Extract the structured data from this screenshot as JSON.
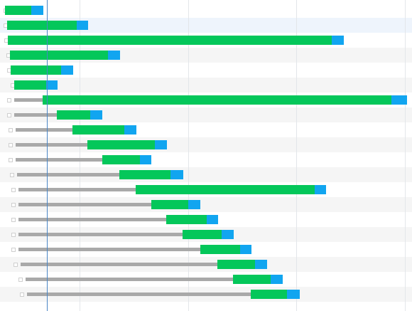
{
  "colors": {
    "row_odd": "#ffffff",
    "row_even": "#f5f5f5",
    "row_highlight": "#eef4fc",
    "queue": "#a9a9a9",
    "download": "#04c75a",
    "wait": "#11a5f0",
    "gridline": "#e3e6ea",
    "marker": "#4a86c5"
  },
  "icons": {
    "row_stub": "request-stub-icon"
  },
  "timeline": {
    "gridlines_ms": [
      112,
      265,
      417,
      570
    ],
    "marker_ms": 66
  },
  "requests": [
    {
      "queued": 0,
      "start": 7,
      "download_end": 44,
      "end": 61,
      "highlight": false
    },
    {
      "queued": 0,
      "start": 10,
      "download_end": 108,
      "end": 124,
      "highlight": true
    },
    {
      "queued": 0,
      "start": 11,
      "download_end": 467,
      "end": 484,
      "highlight": false
    },
    {
      "queued": 0,
      "start": 14,
      "download_end": 152,
      "end": 169,
      "highlight": false
    },
    {
      "queued": 0,
      "start": 15,
      "download_end": 86,
      "end": 103,
      "highlight": false
    },
    {
      "queued": 0,
      "start": 20,
      "download_end": 65,
      "end": 81,
      "highlight": false
    },
    {
      "queued": 20,
      "start": 60,
      "download_end": 551,
      "end": 573,
      "highlight": false
    },
    {
      "queued": 20,
      "start": 80,
      "download_end": 127,
      "end": 144,
      "highlight": false
    },
    {
      "queued": 22,
      "start": 102,
      "download_end": 175,
      "end": 192,
      "highlight": false
    },
    {
      "queued": 22,
      "start": 123,
      "download_end": 218,
      "end": 235,
      "highlight": false
    },
    {
      "queued": 22,
      "start": 144,
      "download_end": 197,
      "end": 213,
      "highlight": false
    },
    {
      "queued": 24,
      "start": 168,
      "download_end": 240,
      "end": 258,
      "highlight": false
    },
    {
      "queued": 26,
      "start": 191,
      "download_end": 443,
      "end": 459,
      "highlight": false
    },
    {
      "queued": 26,
      "start": 213,
      "download_end": 265,
      "end": 282,
      "highlight": false
    },
    {
      "queued": 26,
      "start": 234,
      "download_end": 291,
      "end": 307,
      "highlight": false
    },
    {
      "queued": 26,
      "start": 257,
      "download_end": 312,
      "end": 329,
      "highlight": false
    },
    {
      "queued": 26,
      "start": 282,
      "download_end": 338,
      "end": 354,
      "highlight": false
    },
    {
      "queued": 29,
      "start": 306,
      "download_end": 359,
      "end": 376,
      "highlight": false
    },
    {
      "queued": 36,
      "start": 328,
      "download_end": 381,
      "end": 398,
      "highlight": false
    },
    {
      "queued": 38,
      "start": 353,
      "download_end": 404,
      "end": 422,
      "highlight": false
    }
  ]
}
